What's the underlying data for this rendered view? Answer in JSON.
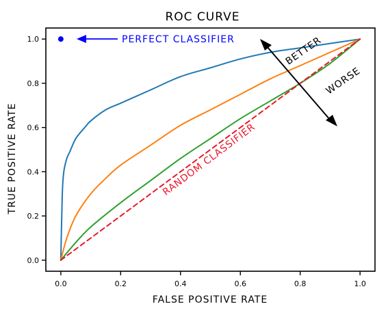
{
  "chart_data": {
    "type": "line",
    "title": "ROC CURVE",
    "xlabel": "FALSE POSITIVE RATE",
    "ylabel": "TRUE POSITIVE RATE",
    "xlim": [
      -0.05,
      1.05
    ],
    "ylim": [
      -0.05,
      1.05
    ],
    "grid": false,
    "xticks": [
      {
        "value": 0.0,
        "label": "0.0"
      },
      {
        "value": 0.2,
        "label": "0.2"
      },
      {
        "value": 0.4,
        "label": "0.4"
      },
      {
        "value": 0.6,
        "label": "0.6"
      },
      {
        "value": 0.8,
        "label": "0.8"
      },
      {
        "value": 1.0,
        "label": "1.0"
      }
    ],
    "yticks": [
      {
        "value": 0.0,
        "label": "0.0"
      },
      {
        "value": 0.2,
        "label": "0.2"
      },
      {
        "value": 0.4,
        "label": "0.4"
      },
      {
        "value": 0.6,
        "label": "0.6"
      },
      {
        "value": 0.8,
        "label": "0.8"
      },
      {
        "value": 1.0,
        "label": "1.0"
      }
    ],
    "series": [
      {
        "color": "#1f77b4",
        "dashed": false,
        "x": [
          0,
          0.005,
          0.01,
          0.02,
          0.03,
          0.05,
          0.08,
          0.1,
          0.15,
          0.2,
          0.25,
          0.3,
          0.4,
          0.5,
          0.6,
          0.7,
          0.8,
          0.9,
          1.0
        ],
        "y": [
          0,
          0.3,
          0.4,
          0.46,
          0.49,
          0.55,
          0.6,
          0.63,
          0.68,
          0.71,
          0.74,
          0.77,
          0.83,
          0.87,
          0.91,
          0.94,
          0.96,
          0.98,
          1.0
        ]
      },
      {
        "color": "#ff7f0e",
        "dashed": false,
        "x": [
          0,
          0.02,
          0.05,
          0.1,
          0.15,
          0.2,
          0.3,
          0.4,
          0.5,
          0.6,
          0.7,
          0.8,
          0.9,
          1.0
        ],
        "y": [
          0,
          0.1,
          0.2,
          0.3,
          0.37,
          0.43,
          0.52,
          0.61,
          0.68,
          0.75,
          0.82,
          0.88,
          0.94,
          1.0
        ]
      },
      {
        "color": "#2ca02c",
        "dashed": false,
        "x": [
          0,
          0.05,
          0.1,
          0.2,
          0.3,
          0.4,
          0.5,
          0.6,
          0.7,
          0.8,
          0.9,
          1.0
        ],
        "y": [
          0,
          0.08,
          0.15,
          0.26,
          0.36,
          0.46,
          0.55,
          0.64,
          0.72,
          0.8,
          0.89,
          1.0
        ]
      },
      {
        "color": "#e8172b",
        "dashed": true,
        "x": [
          0,
          1
        ],
        "y": [
          0,
          1
        ]
      }
    ],
    "perfect_point": {
      "x": 0.0,
      "y": 1.0,
      "color": "#0000ff"
    },
    "annotations": [
      {
        "text": "PERFECT CLASSIFIER",
        "color": "#0000ff"
      },
      {
        "text": "RANDOM CLASSIFIER",
        "color": "#e8172b"
      },
      {
        "text": "BETTER",
        "color": "#000000"
      },
      {
        "text": "WORSE",
        "color": "#000000"
      }
    ]
  }
}
